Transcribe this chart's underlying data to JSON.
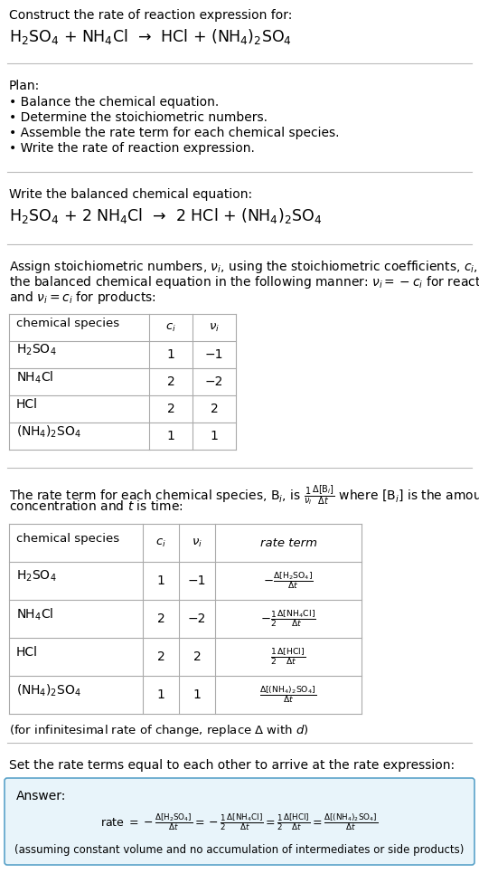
{
  "bg_color": "#ffffff",
  "text_color": "#000000",
  "title_line1": "Construct the rate of reaction expression for:",
  "reaction_unbalanced": "H$_2$SO$_4$ + NH$_4$Cl  →  HCl + (NH$_4$)$_2$SO$_4$",
  "plan_header": "Plan:",
  "plan_items": [
    "• Balance the chemical equation.",
    "• Determine the stoichiometric numbers.",
    "• Assemble the rate term for each chemical species.",
    "• Write the rate of reaction expression."
  ],
  "balanced_header": "Write the balanced chemical equation:",
  "reaction_balanced": "H$_2$SO$_4$ + 2 NH$_4$Cl  →  2 HCl + (NH$_4$)$_2$SO$_4$",
  "stoich_intro_lines": [
    "Assign stoichiometric numbers, $\\nu_i$, using the stoichiometric coefficients, $c_i$, from",
    "the balanced chemical equation in the following manner: $\\nu_i = -c_i$ for reactants",
    "and $\\nu_i = c_i$ for products:"
  ],
  "table1_headers": [
    "chemical species",
    "$c_i$",
    "$\\nu_i$"
  ],
  "table1_rows": [
    [
      "H$_2$SO$_4$",
      "1",
      "−1"
    ],
    [
      "NH$_4$Cl",
      "2",
      "−2"
    ],
    [
      "HCl",
      "2",
      "2"
    ],
    [
      "(NH$_4$)$_2$SO$_4$",
      "1",
      "1"
    ]
  ],
  "rate_intro_lines": [
    "The rate term for each chemical species, B$_i$, is $\\frac{1}{\\nu_i}\\frac{\\Delta[\\mathrm{B}_i]}{\\Delta t}$ where [B$_i$] is the amount",
    "concentration and $t$ is time:"
  ],
  "table2_headers": [
    "chemical species",
    "$c_i$",
    "$\\nu_i$",
    "rate term"
  ],
  "table2_rows": [
    [
      "H$_2$SO$_4$",
      "1",
      "−1",
      "$-\\frac{\\Delta[\\mathrm{H_2SO_4}]}{\\Delta t}$"
    ],
    [
      "NH$_4$Cl",
      "2",
      "−2",
      "$-\\frac{1}{2}\\frac{\\Delta[\\mathrm{NH_4Cl}]}{\\Delta t}$"
    ],
    [
      "HCl",
      "2",
      "2",
      "$\\frac{1}{2}\\frac{\\Delta[\\mathrm{HCl}]}{\\Delta t}$"
    ],
    [
      "(NH$_4$)$_2$SO$_4$",
      "1",
      "1",
      "$\\frac{\\Delta[\\mathrm{(NH_4)_2SO_4}]}{\\Delta t}$"
    ]
  ],
  "infinitesimal_note": "(for infinitesimal rate of change, replace Δ with $d$)",
  "set_rate_text": "Set the rate terms equal to each other to arrive at the rate expression:",
  "answer_label": "Answer:",
  "answer_box_color": "#e8f4fa",
  "answer_box_border": "#5ba3c9",
  "answer_rate_expr": "rate $= -\\frac{\\Delta[\\mathrm{H_2SO_4}]}{\\Delta t} = -\\frac{1}{2}\\frac{\\Delta[\\mathrm{NH_4Cl}]}{\\Delta t} = \\frac{1}{2}\\frac{\\Delta[\\mathrm{HCl}]}{\\Delta t} = \\frac{\\Delta[\\mathrm{(NH_4)_2SO_4}]}{\\Delta t}$",
  "answer_note": "(assuming constant volume and no accumulation of intermediates or side products)"
}
